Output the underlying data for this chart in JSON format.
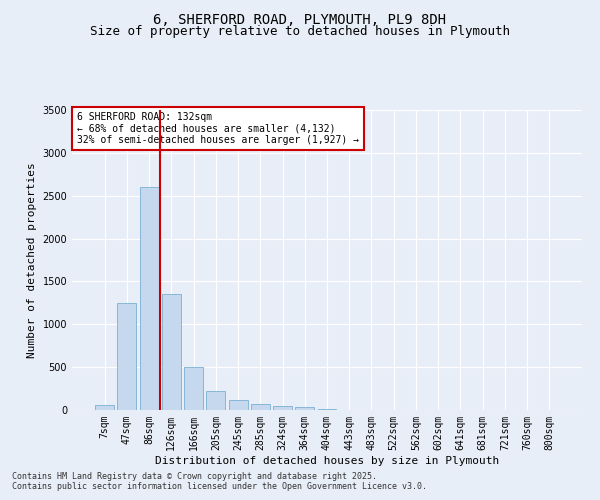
{
  "title1": "6, SHERFORD ROAD, PLYMOUTH, PL9 8DH",
  "title2": "Size of property relative to detached houses in Plymouth",
  "xlabel": "Distribution of detached houses by size in Plymouth",
  "ylabel": "Number of detached properties",
  "categories": [
    "7sqm",
    "47sqm",
    "86sqm",
    "126sqm",
    "166sqm",
    "205sqm",
    "245sqm",
    "285sqm",
    "324sqm",
    "364sqm",
    "404sqm",
    "443sqm",
    "483sqm",
    "522sqm",
    "562sqm",
    "602sqm",
    "641sqm",
    "681sqm",
    "721sqm",
    "760sqm",
    "800sqm"
  ],
  "values": [
    55,
    1250,
    2600,
    1350,
    500,
    220,
    120,
    65,
    45,
    30,
    10,
    5,
    3,
    2,
    1,
    1,
    0,
    0,
    0,
    0,
    0
  ],
  "bar_color": "#c5d8ee",
  "bar_edge_color": "#7aafd4",
  "vline_x_index": 2.5,
  "vline_color": "#cc0000",
  "annotation_text_line1": "6 SHERFORD ROAD: 132sqm",
  "annotation_text_line2": "← 68% of detached houses are smaller (4,132)",
  "annotation_text_line3": "32% of semi-detached houses are larger (1,927) →",
  "annotation_box_color": "#cc0000",
  "footer1": "Contains HM Land Registry data © Crown copyright and database right 2025.",
  "footer2": "Contains public sector information licensed under the Open Government Licence v3.0.",
  "ylim": [
    0,
    3500
  ],
  "yticks": [
    0,
    500,
    1000,
    1500,
    2000,
    2500,
    3000,
    3500
  ],
  "bg_color": "#e8eef7",
  "grid_color": "#ffffff",
  "title_fontsize": 10,
  "subtitle_fontsize": 9,
  "axis_label_fontsize": 8,
  "tick_fontsize": 7,
  "annotation_fontsize": 7,
  "footer_fontsize": 6
}
